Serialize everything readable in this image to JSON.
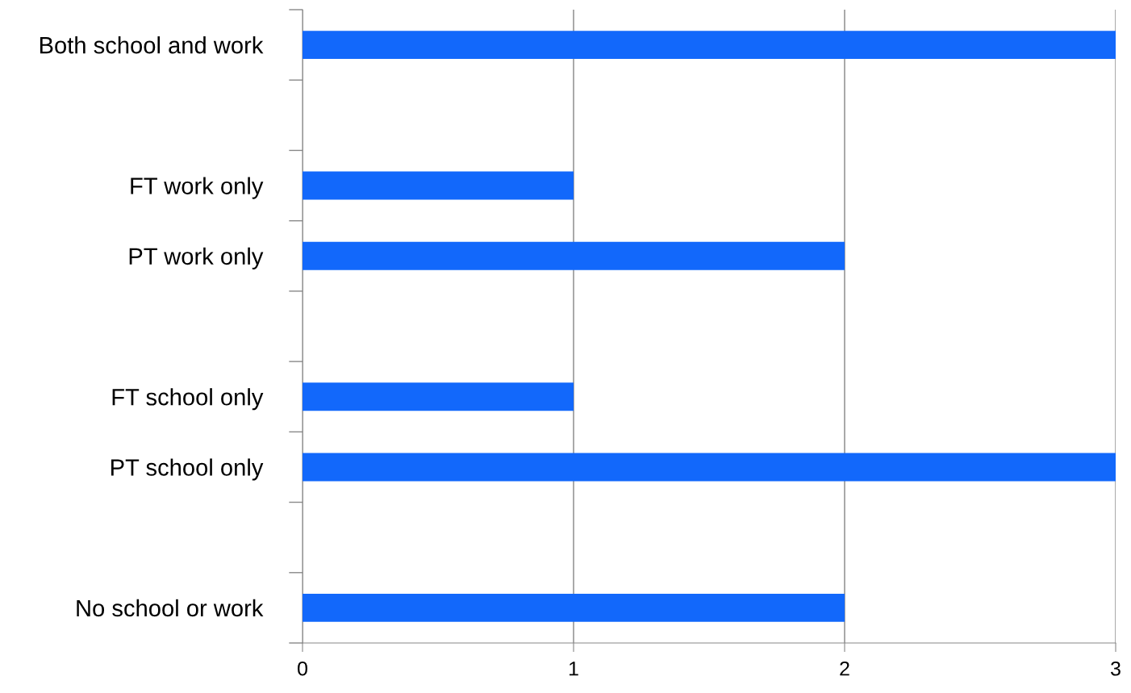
{
  "chart_data": {
    "type": "bar",
    "orientation": "horizontal",
    "categories": [
      "Both school and work",
      null,
      "FT work only",
      "PT work only",
      null,
      "FT school only",
      "PT school only",
      null,
      "No school or work"
    ],
    "values": [
      3,
      null,
      1,
      2,
      null,
      1,
      3,
      null,
      2
    ],
    "color": "#1268fb",
    "xlim": [
      0,
      3
    ],
    "xticks": [
      0,
      1,
      2,
      3
    ],
    "grid": "x",
    "legend": false
  }
}
